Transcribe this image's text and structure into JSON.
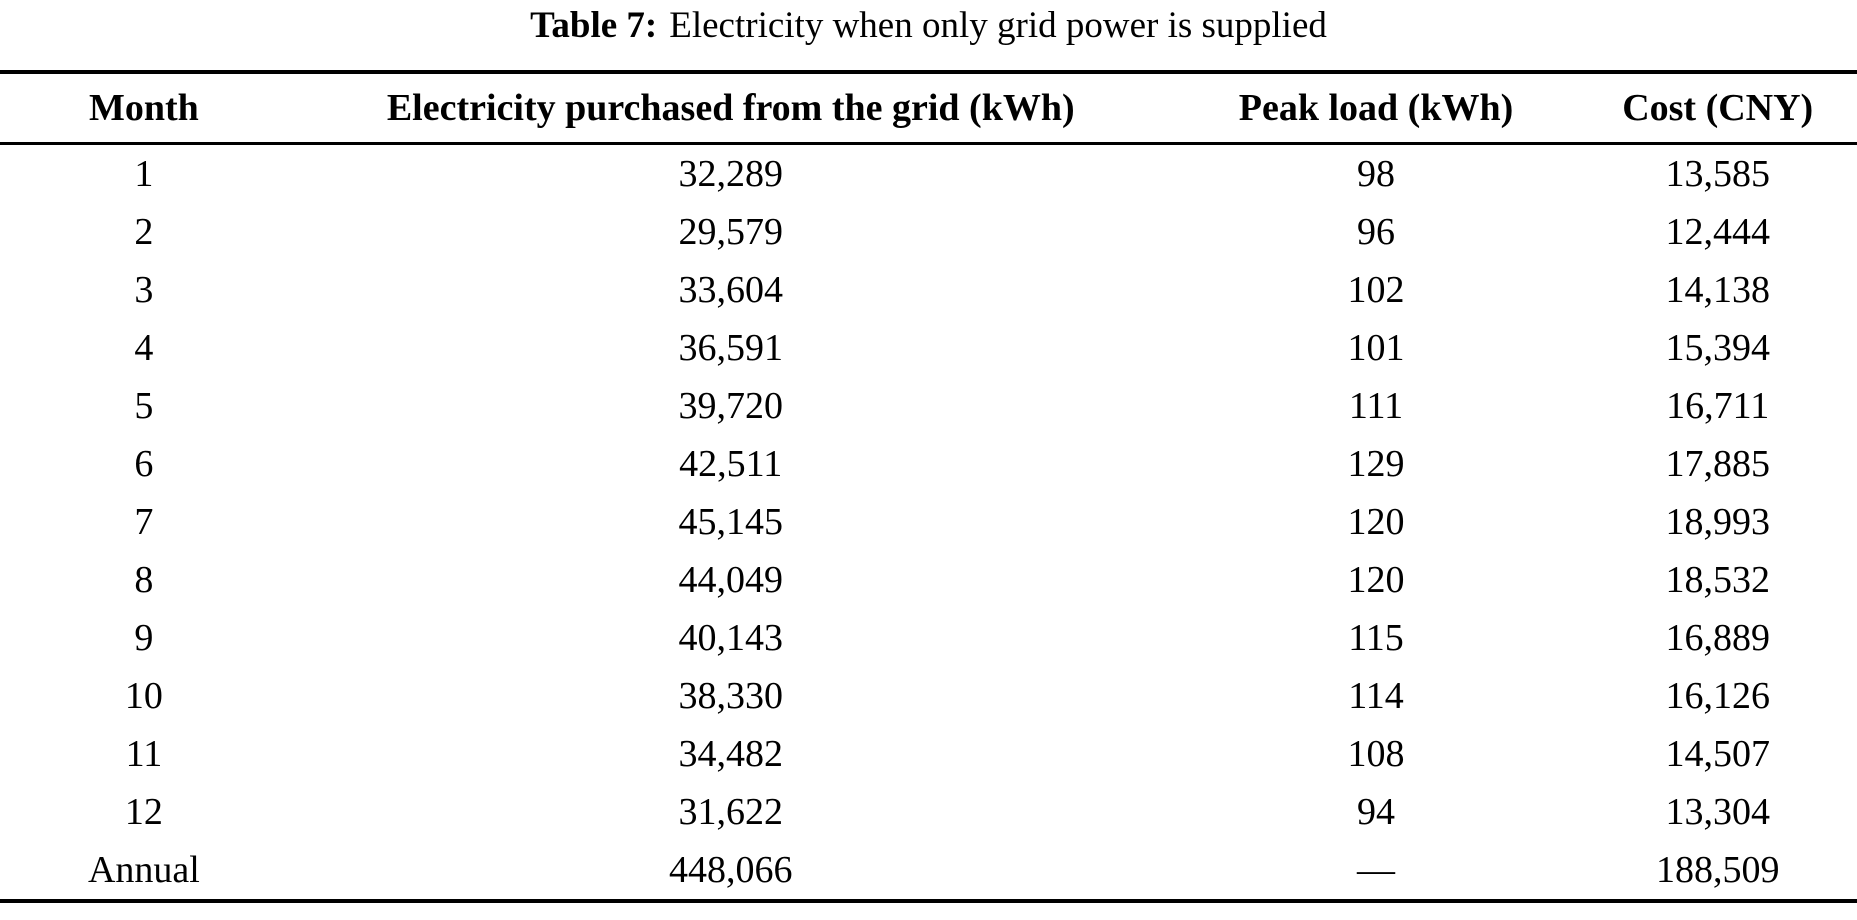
{
  "table": {
    "caption": {
      "label": "Table 7:",
      "text": "Electricity when only grid power is supplied"
    },
    "columns": [
      "Month",
      "Electricity purchased from the grid (kWh)",
      "Peak load (kWh)",
      "Cost (CNY)"
    ],
    "column_widths_pct": [
      15.5,
      47.7,
      21.8,
      15.0
    ],
    "rows": [
      [
        "1",
        "32,289",
        "98",
        "13,585"
      ],
      [
        "2",
        "29,579",
        "96",
        "12,444"
      ],
      [
        "3",
        "33,604",
        "102",
        "14,138"
      ],
      [
        "4",
        "36,591",
        "101",
        "15,394"
      ],
      [
        "5",
        "39,720",
        "111",
        "16,711"
      ],
      [
        "6",
        "42,511",
        "129",
        "17,885"
      ],
      [
        "7",
        "45,145",
        "120",
        "18,993"
      ],
      [
        "8",
        "44,049",
        "120",
        "18,532"
      ],
      [
        "9",
        "40,143",
        "115",
        "16,889"
      ],
      [
        "10",
        "38,330",
        "114",
        "16,126"
      ],
      [
        "11",
        "34,482",
        "108",
        "14,507"
      ],
      [
        "12",
        "31,622",
        "94",
        "13,304"
      ],
      [
        "Annual",
        "448,066",
        "—",
        "188,509"
      ]
    ],
    "colors": {
      "text": "#000000",
      "background": "#ffffff",
      "rule": "#000000"
    }
  }
}
